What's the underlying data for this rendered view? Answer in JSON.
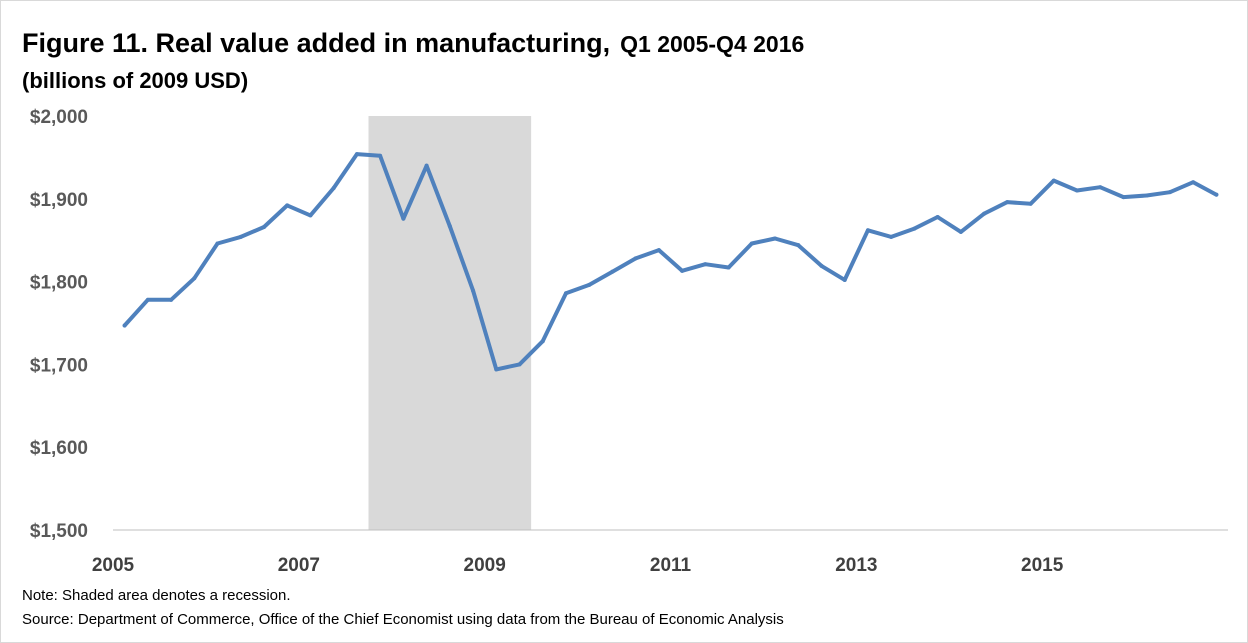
{
  "chart_data": {
    "type": "line",
    "title": "Figure 11. Real value added in manufacturing,",
    "title_tail": "Q1 2005-Q4 2016",
    "subtitle": "(billions of 2009 USD)",
    "ylim": [
      1500,
      2000
    ],
    "yticks": [
      1500,
      1600,
      1700,
      1800,
      1900,
      2000
    ],
    "ytick_labels": [
      "$1,500",
      "$1,600",
      "$1,700",
      "$1,800",
      "$1,900",
      "$2,000"
    ],
    "xlim": [
      2005.0,
      2017.0
    ],
    "xticks": [
      2005,
      2007,
      2009,
      2011,
      2013,
      2015
    ],
    "xtick_labels": [
      "2005",
      "2007",
      "2009",
      "2011",
      "2013",
      "2015"
    ],
    "recession": {
      "start": 2007.75,
      "end": 2009.5,
      "color": "#d9d9d9"
    },
    "series": [
      {
        "color": "#4f81bd",
        "x": [
          2005.0,
          2005.25,
          2005.5,
          2005.75,
          2006.0,
          2006.25,
          2006.5,
          2006.75,
          2007.0,
          2007.25,
          2007.5,
          2007.75,
          2008.0,
          2008.25,
          2008.5,
          2008.75,
          2009.0,
          2009.25,
          2009.5,
          2009.75,
          2010.0,
          2010.25,
          2010.5,
          2010.75,
          2011.0,
          2011.25,
          2011.5,
          2011.75,
          2012.0,
          2012.25,
          2012.5,
          2012.75,
          2013.0,
          2013.25,
          2013.5,
          2013.75,
          2014.0,
          2014.25,
          2014.5,
          2014.75,
          2015.0,
          2015.25,
          2015.5,
          2015.75,
          2016.0,
          2016.25,
          2016.5,
          2016.75
        ],
        "values": [
          1747,
          1778,
          1778,
          1804,
          1846,
          1854,
          1866,
          1892,
          1880,
          1913,
          1954,
          1952,
          1876,
          1940,
          1867,
          1789,
          1694,
          1700,
          1728,
          1786,
          1796,
          1812,
          1828,
          1838,
          1813,
          1821,
          1817,
          1846,
          1852,
          1844,
          1819,
          1802,
          1862,
          1854,
          1864,
          1878,
          1860,
          1882,
          1896,
          1894,
          1922,
          1910,
          1914,
          1902,
          1904,
          1908,
          1920,
          1905
        ]
      }
    ],
    "note": "Note: Shaded area denotes a recession.",
    "source": "Source: Department of Commerce, Office of the Chief Economist using data from the Bureau of Economic Analysis"
  }
}
